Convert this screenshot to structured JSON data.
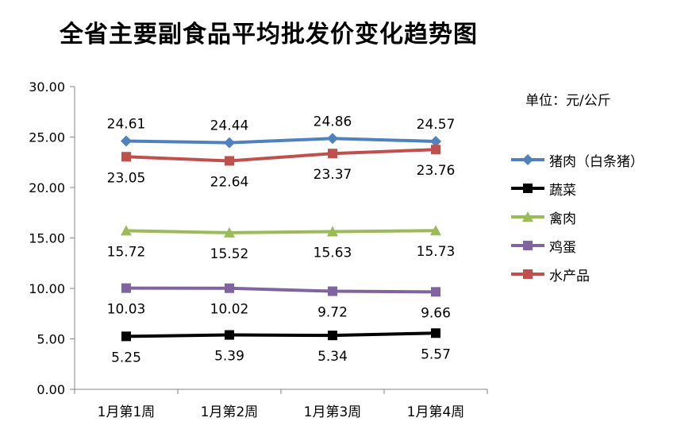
{
  "title": "全省主要副食品平均批发价变化趋势图",
  "unit_label": "单位：元/公斤",
  "chart_data": {
    "type": "line",
    "title": "全省主要副食品平均批发价变化趋势图",
    "xlabel": "",
    "ylabel": "",
    "ylim": [
      0,
      30
    ],
    "yticks": [
      "0.00",
      "5.00",
      "10.00",
      "15.00",
      "20.00",
      "25.00",
      "30.00"
    ],
    "categories": [
      "1月第1周",
      "1月第2周",
      "1月第3周",
      "1月第4周"
    ],
    "grid": false,
    "legend_position": "right",
    "series": [
      {
        "name": "猪肉（白条猪）",
        "values": [
          24.61,
          24.44,
          24.86,
          24.57
        ],
        "labels": [
          "24.61",
          "24.44",
          "24.86",
          "24.57"
        ],
        "color": "#4f81bd",
        "marker": "diamond",
        "label_side": "above"
      },
      {
        "name": "蔬菜",
        "values": [
          5.25,
          5.39,
          5.34,
          5.57
        ],
        "labels": [
          "5.25",
          "5.39",
          "5.34",
          "5.57"
        ],
        "color": "#000000",
        "marker": "square",
        "label_side": "below"
      },
      {
        "name": "禽肉",
        "values": [
          15.72,
          15.52,
          15.63,
          15.73
        ],
        "labels": [
          "15.72",
          "15.52",
          "15.63",
          "15.73"
        ],
        "color": "#9bbb59",
        "marker": "triangle",
        "label_side": "below"
      },
      {
        "name": "鸡蛋",
        "values": [
          10.03,
          10.02,
          9.72,
          9.66
        ],
        "labels": [
          "10.03",
          "10.02",
          "9.72",
          "9.66"
        ],
        "color": "#8064a2",
        "marker": "square",
        "label_side": "below"
      },
      {
        "name": "水产品",
        "values": [
          23.05,
          22.64,
          23.37,
          23.76
        ],
        "labels": [
          "23.05",
          "22.64",
          "23.37",
          "23.76"
        ],
        "color": "#c0504d",
        "marker": "square",
        "label_side": "below"
      }
    ]
  }
}
